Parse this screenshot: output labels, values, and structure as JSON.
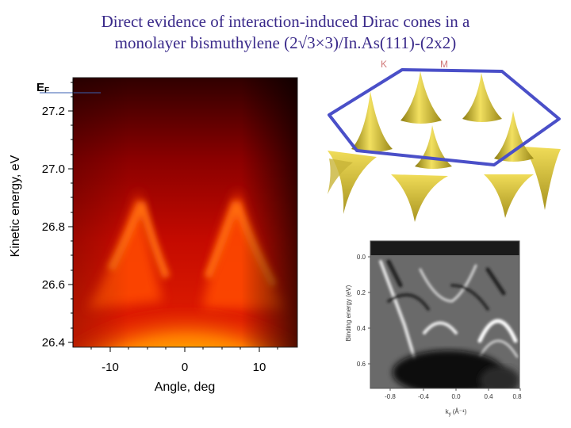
{
  "title": {
    "line1": "Direct evidence of interaction-induced Dirac cones in a",
    "line2": "monolayer bismuthylene (2√3×3)/In.As(111)-(2x2)"
  },
  "arpes_panel": {
    "fermi_label": "E",
    "fermi_sub": "F",
    "ylabel": "Kinetic energy, eV",
    "xlabel": "Angle, deg",
    "y_ticks": [
      "27.2",
      "27.0",
      "26.8",
      "26.6",
      "26.4"
    ],
    "x_ticks": [
      "-10",
      "0",
      "10"
    ]
  },
  "cones_panel": {
    "label_k": "K",
    "label_m": "M",
    "hexagon_color": "#4a4fc8",
    "cone_color": "#d9c640"
  },
  "curvature_panel": {
    "ylabel": "Binding energy (eV)",
    "xlabel_main": "k",
    "xlabel_sub": "y",
    "xlabel_unit": "(Å⁻¹)",
    "y_ticks": [
      "0.0",
      "0.2",
      "0.4",
      "0.6"
    ],
    "x_ticks": [
      "-0.8",
      "-0.4",
      "0.0",
      "0.4",
      "0.8"
    ]
  }
}
